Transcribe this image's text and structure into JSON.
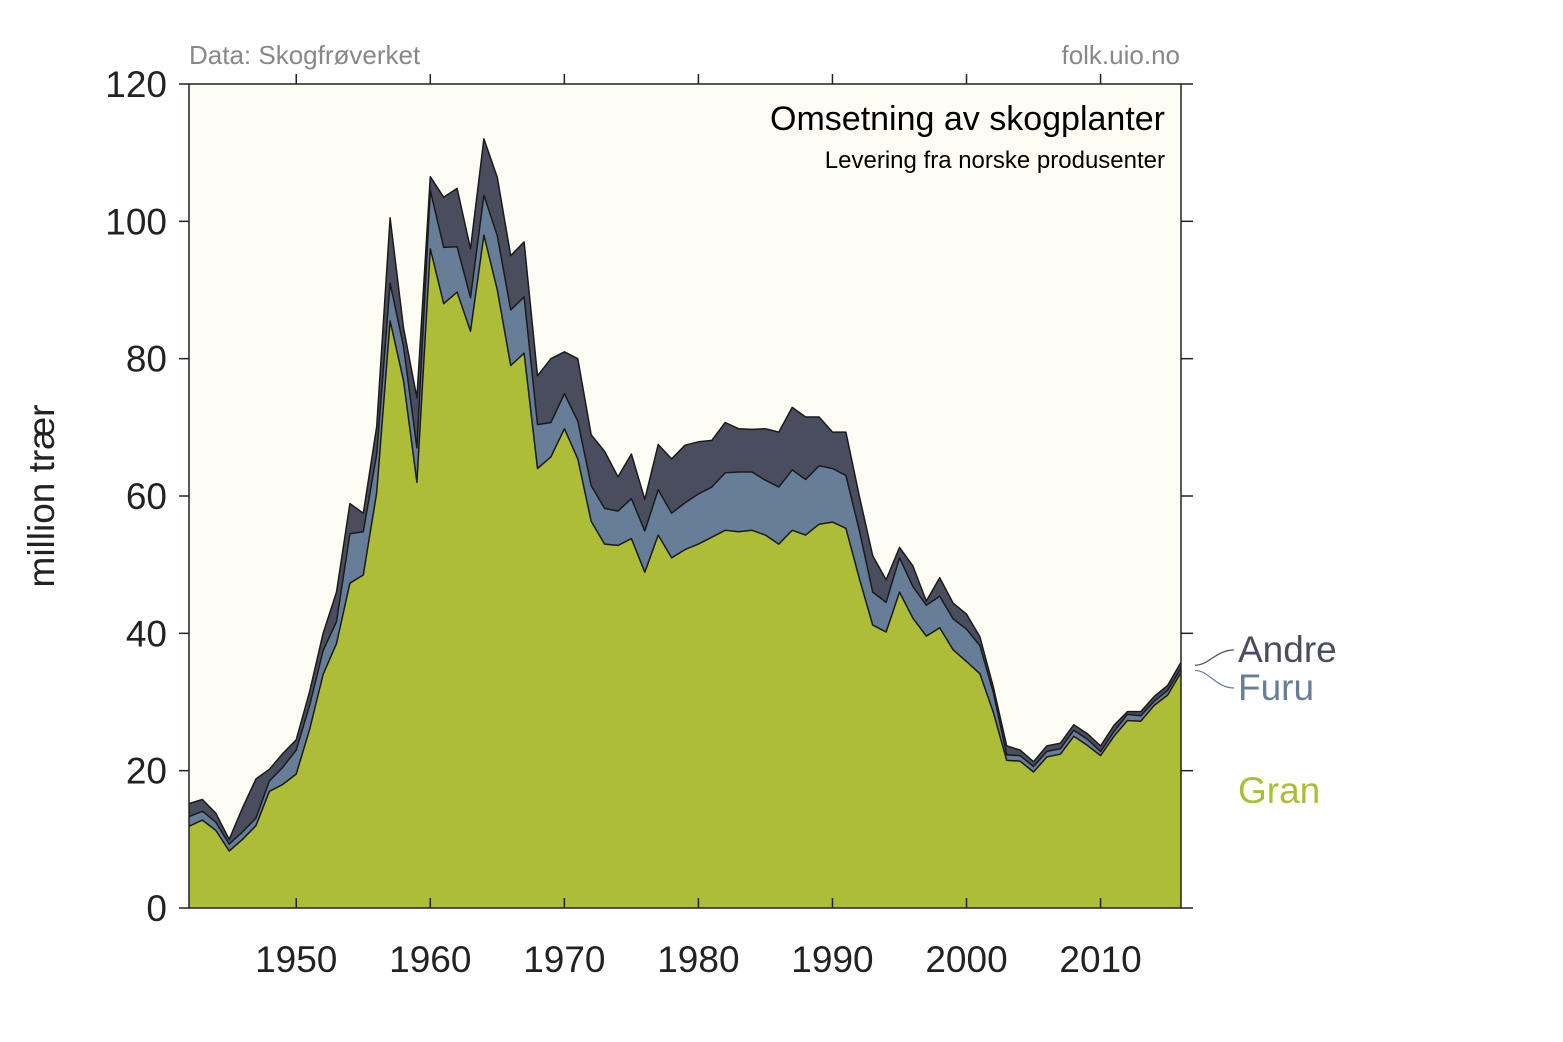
{
  "header": {
    "source_note": "Data: Skogfrøverket",
    "site_note": "folk.uio.no"
  },
  "chart_data": {
    "type": "area",
    "stacked": true,
    "title": "Omsetning av skogplanter",
    "subtitle": "Levering fra norske produsenter",
    "xlabel": "",
    "ylabel": "million trær",
    "xlim": [
      1942,
      2016
    ],
    "ylim": [
      0,
      120
    ],
    "xticks": [
      1950,
      1960,
      1970,
      1980,
      1990,
      2000,
      2010
    ],
    "yticks": [
      0,
      20,
      40,
      60,
      80,
      100,
      120
    ],
    "grid": false,
    "background": "#fefdf3",
    "x": [
      1942,
      1943,
      1944,
      1945,
      1946,
      1947,
      1948,
      1949,
      1950,
      1951,
      1952,
      1953,
      1954,
      1955,
      1956,
      1957,
      1958,
      1959,
      1960,
      1961,
      1962,
      1963,
      1964,
      1965,
      1966,
      1967,
      1968,
      1969,
      1970,
      1971,
      1972,
      1973,
      1974,
      1975,
      1976,
      1977,
      1978,
      1979,
      1980,
      1981,
      1982,
      1983,
      1984,
      1985,
      1986,
      1987,
      1988,
      1989,
      1990,
      1991,
      1992,
      1993,
      1994,
      1995,
      1996,
      1997,
      1998,
      1999,
      2000,
      2001,
      2002,
      2003,
      2004,
      2005,
      2006,
      2007,
      2008,
      2009,
      2010,
      2011,
      2012,
      2013,
      2014,
      2015,
      2016
    ],
    "series": [
      {
        "name": "Gran",
        "color": "#adbd38",
        "values": [
          11.9,
          12.8,
          11.3,
          8.3,
          10.0,
          12.0,
          17.0,
          18.0,
          19.5,
          26.0,
          34.0,
          38.5,
          47.3,
          48.5,
          60.5,
          85.5,
          76.8,
          62.0,
          96.0,
          88.0,
          89.7,
          84.0,
          98.0,
          90.0,
          79.0,
          80.8,
          64.0,
          65.7,
          69.8,
          65.4,
          56.3,
          53.0,
          52.8,
          53.8,
          48.9,
          54.3,
          51.0,
          52.2,
          53.0,
          54.0,
          55.0,
          54.8,
          55.0,
          54.3,
          53.0,
          55.0,
          54.3,
          55.9,
          56.2,
          55.3,
          48.0,
          41.2,
          40.2,
          46.0,
          42.2,
          39.6,
          40.8,
          37.6,
          35.9,
          34.1,
          28.5,
          21.5,
          21.4,
          19.8,
          22.0,
          22.4,
          25.0,
          23.7,
          22.2,
          25.0,
          27.3,
          27.2,
          29.5,
          31.0,
          34.3
        ]
      },
      {
        "name": "Furu",
        "color": "#667e98",
        "values": [
          1.4,
          1.3,
          1.2,
          1.0,
          1.1,
          1.1,
          1.5,
          2.5,
          3.5,
          3.5,
          3.5,
          3.2,
          7.2,
          6.3,
          5.6,
          5.5,
          5.0,
          5.0,
          8.5,
          8.2,
          6.6,
          4.9,
          5.8,
          7.9,
          8.1,
          8.2,
          6.4,
          5.0,
          5.1,
          5.5,
          5.2,
          5.2,
          5.0,
          5.8,
          6.0,
          6.6,
          6.5,
          6.8,
          7.3,
          7.3,
          8.4,
          8.7,
          8.5,
          8.0,
          8.3,
          8.8,
          8.1,
          8.5,
          7.8,
          7.7,
          7.0,
          4.8,
          4.3,
          5.0,
          4.6,
          4.5,
          4.6,
          4.5,
          4.7,
          4.1,
          2.9,
          0.8,
          0.8,
          0.8,
          0.8,
          0.8,
          0.9,
          0.9,
          0.6,
          0.7,
          0.9,
          0.8,
          0.6,
          0.7,
          0.6
        ]
      },
      {
        "name": "Andre",
        "color": "#4a4d5e",
        "values": [
          1.9,
          1.7,
          1.3,
          0.7,
          3.5,
          5.7,
          1.7,
          2.0,
          1.5,
          2.0,
          2.5,
          4.3,
          4.4,
          2.7,
          4.0,
          9.5,
          2.7,
          7.3,
          2.0,
          7.3,
          8.5,
          7.1,
          8.2,
          8.5,
          7.9,
          8.0,
          7.1,
          9.3,
          6.1,
          9.1,
          7.4,
          8.3,
          5.0,
          6.5,
          4.6,
          6.6,
          7.9,
          8.4,
          7.6,
          6.8,
          7.3,
          6.3,
          6.2,
          7.5,
          8.0,
          9.1,
          9.1,
          7.1,
          5.3,
          6.3,
          5.0,
          5.3,
          3.3,
          1.5,
          3.0,
          0.6,
          2.7,
          2.3,
          2.2,
          1.3,
          0.8,
          1.3,
          0.8,
          0.7,
          0.8,
          0.8,
          0.8,
          0.8,
          0.8,
          0.9,
          0.4,
          0.6,
          0.7,
          0.7,
          0.9
        ]
      }
    ],
    "legend_placement": "right, at series end",
    "legend_entries": [
      "Andre",
      "Furu",
      "Gran"
    ]
  }
}
